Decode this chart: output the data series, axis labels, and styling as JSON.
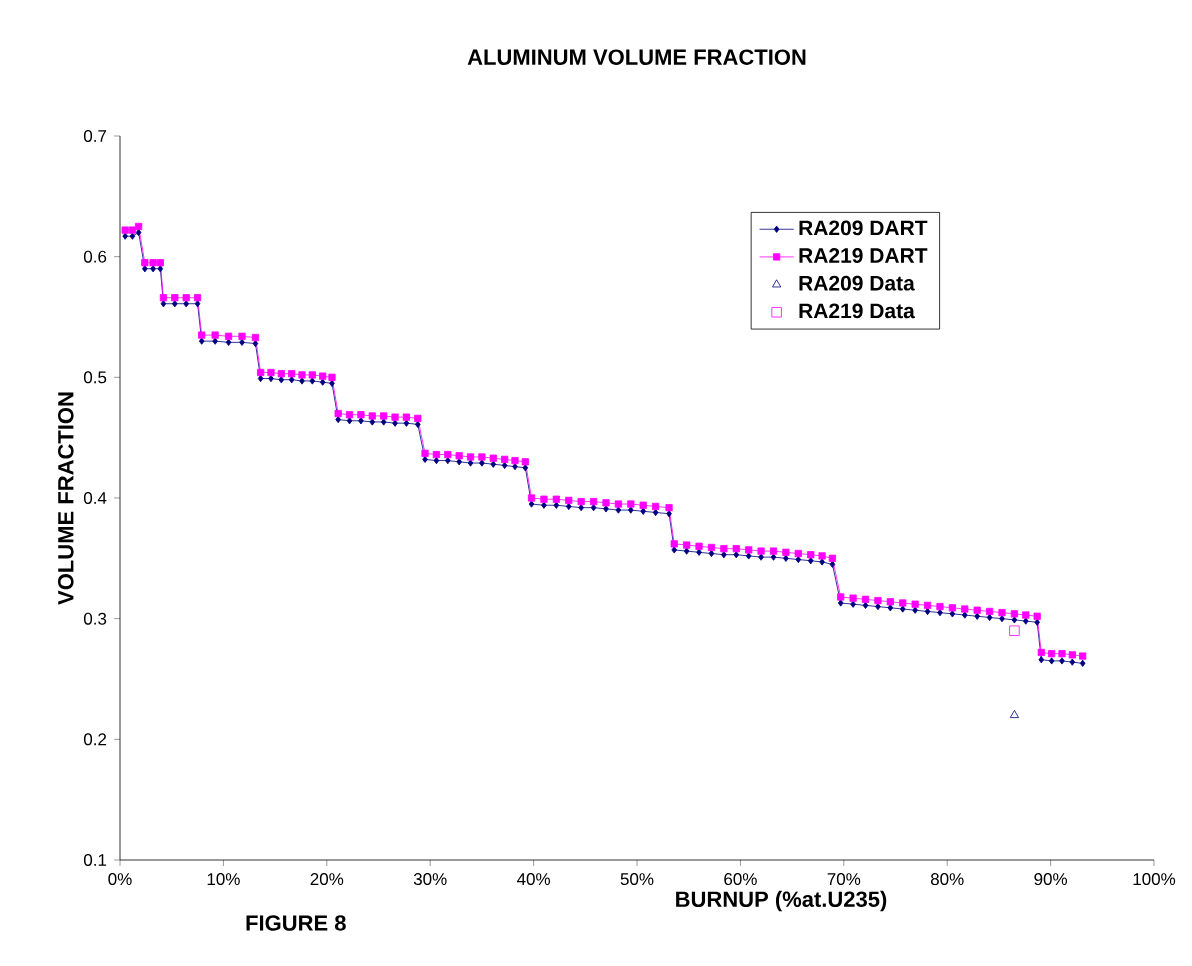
{
  "chart_data": {
    "type": "line",
    "title": "ALUMINUM VOLUME FRACTION",
    "xlabel": "BURNUP (%at.U235)",
    "ylabel": "VOLUME FRACTION",
    "annotations": [
      "FIGURE 8"
    ],
    "xlim": [
      0,
      100
    ],
    "xticks": [
      {
        "value": 0,
        "label": "0%"
      },
      {
        "value": 10,
        "label": "10%"
      },
      {
        "value": 20,
        "label": "20%"
      },
      {
        "value": 30,
        "label": "30%"
      },
      {
        "value": 40,
        "label": "40%"
      },
      {
        "value": 50,
        "label": "50%"
      },
      {
        "value": 60,
        "label": "60%"
      },
      {
        "value": 70,
        "label": "70%"
      },
      {
        "value": 80,
        "label": "80%"
      },
      {
        "value": 90,
        "label": "90%"
      },
      {
        "value": 100,
        "label": "100%"
      }
    ],
    "ylim": [
      0.1,
      0.7
    ],
    "yticks": [
      0.1,
      0.2,
      0.3,
      0.4,
      0.5,
      0.6,
      0.7
    ],
    "legend": "top right",
    "grid": false,
    "series": [
      {
        "name": "RA209 DART",
        "color": "#000080",
        "marker": "diamond",
        "x": [
          0.5,
          1.2,
          1.8,
          2.4,
          3.2,
          3.9,
          4.2,
          5.3,
          6.4,
          7.5,
          7.9,
          9.2,
          10.5,
          11.8,
          13.1,
          13.6,
          14.6,
          15.6,
          16.6,
          17.6,
          18.6,
          19.6,
          20.5,
          21.1,
          22.2,
          23.3,
          24.4,
          25.5,
          26.6,
          27.7,
          28.8,
          29.5,
          30.6,
          31.7,
          32.8,
          33.9,
          35.0,
          36.1,
          37.2,
          38.2,
          39.2,
          39.8,
          41.0,
          42.2,
          43.4,
          44.6,
          45.8,
          47.0,
          48.2,
          49.4,
          50.6,
          51.8,
          53.1,
          53.6,
          54.8,
          56.0,
          57.2,
          58.4,
          59.6,
          60.8,
          62.0,
          63.2,
          64.4,
          65.6,
          66.8,
          67.9,
          68.9,
          69.7,
          70.9,
          72.1,
          73.3,
          74.5,
          75.7,
          76.9,
          78.1,
          79.3,
          80.5,
          81.7,
          82.9,
          84.1,
          85.3,
          86.5,
          87.6,
          88.7,
          89.1,
          90.1,
          91.1,
          92.1,
          93.1
        ],
        "values": [
          0.617,
          0.617,
          0.62,
          0.59,
          0.59,
          0.59,
          0.561,
          0.561,
          0.561,
          0.561,
          0.53,
          0.53,
          0.529,
          0.529,
          0.528,
          0.499,
          0.499,
          0.498,
          0.498,
          0.497,
          0.497,
          0.496,
          0.495,
          0.465,
          0.464,
          0.464,
          0.463,
          0.463,
          0.462,
          0.462,
          0.461,
          0.432,
          0.431,
          0.431,
          0.43,
          0.429,
          0.429,
          0.428,
          0.427,
          0.426,
          0.425,
          0.395,
          0.394,
          0.394,
          0.393,
          0.392,
          0.392,
          0.391,
          0.39,
          0.39,
          0.389,
          0.388,
          0.387,
          0.357,
          0.356,
          0.355,
          0.354,
          0.353,
          0.353,
          0.352,
          0.351,
          0.351,
          0.35,
          0.349,
          0.348,
          0.347,
          0.345,
          0.313,
          0.312,
          0.311,
          0.31,
          0.309,
          0.308,
          0.307,
          0.306,
          0.305,
          0.304,
          0.303,
          0.302,
          0.301,
          0.3,
          0.299,
          0.298,
          0.297,
          0.266,
          0.265,
          0.265,
          0.264,
          0.263
        ]
      },
      {
        "name": "RA219 DART",
        "color": "#ff00ff",
        "marker": "square",
        "x": [
          0.5,
          1.2,
          1.8,
          2.4,
          3.2,
          3.9,
          4.2,
          5.3,
          6.4,
          7.5,
          7.9,
          9.2,
          10.5,
          11.8,
          13.1,
          13.6,
          14.6,
          15.6,
          16.6,
          17.6,
          18.6,
          19.6,
          20.5,
          21.1,
          22.2,
          23.3,
          24.4,
          25.5,
          26.6,
          27.7,
          28.8,
          29.5,
          30.6,
          31.7,
          32.8,
          33.9,
          35.0,
          36.1,
          37.2,
          38.2,
          39.2,
          39.8,
          41.0,
          42.2,
          43.4,
          44.6,
          45.8,
          47.0,
          48.2,
          49.4,
          50.6,
          51.8,
          53.1,
          53.6,
          54.8,
          56.0,
          57.2,
          58.4,
          59.6,
          60.8,
          62.0,
          63.2,
          64.4,
          65.6,
          66.8,
          67.9,
          68.9,
          69.7,
          70.9,
          72.1,
          73.3,
          74.5,
          75.7,
          76.9,
          78.1,
          79.3,
          80.5,
          81.7,
          82.9,
          84.1,
          85.3,
          86.5,
          87.6,
          88.7,
          89.1,
          90.1,
          91.1,
          92.1,
          93.1
        ],
        "values": [
          0.622,
          0.622,
          0.625,
          0.595,
          0.595,
          0.595,
          0.566,
          0.566,
          0.566,
          0.566,
          0.535,
          0.535,
          0.534,
          0.534,
          0.533,
          0.504,
          0.504,
          0.503,
          0.503,
          0.502,
          0.502,
          0.501,
          0.5,
          0.47,
          0.469,
          0.469,
          0.468,
          0.468,
          0.467,
          0.467,
          0.466,
          0.437,
          0.436,
          0.436,
          0.435,
          0.434,
          0.434,
          0.433,
          0.432,
          0.431,
          0.43,
          0.4,
          0.399,
          0.399,
          0.398,
          0.397,
          0.397,
          0.396,
          0.395,
          0.395,
          0.394,
          0.393,
          0.392,
          0.362,
          0.361,
          0.36,
          0.359,
          0.358,
          0.358,
          0.357,
          0.356,
          0.356,
          0.355,
          0.354,
          0.353,
          0.352,
          0.35,
          0.318,
          0.317,
          0.316,
          0.315,
          0.314,
          0.313,
          0.312,
          0.311,
          0.31,
          0.309,
          0.308,
          0.307,
          0.306,
          0.305,
          0.304,
          0.303,
          0.302,
          0.272,
          0.271,
          0.271,
          0.27,
          0.269
        ]
      },
      {
        "name": "RA209 Data",
        "type": "scatter",
        "color": "#000080",
        "marker": "triangle",
        "x": [
          86.5
        ],
        "values": [
          0.22
        ]
      },
      {
        "name": "RA219 Data",
        "type": "scatter",
        "color": "#ff00ff",
        "marker": "square",
        "x": [
          86.5
        ],
        "values": [
          0.29
        ]
      }
    ]
  }
}
